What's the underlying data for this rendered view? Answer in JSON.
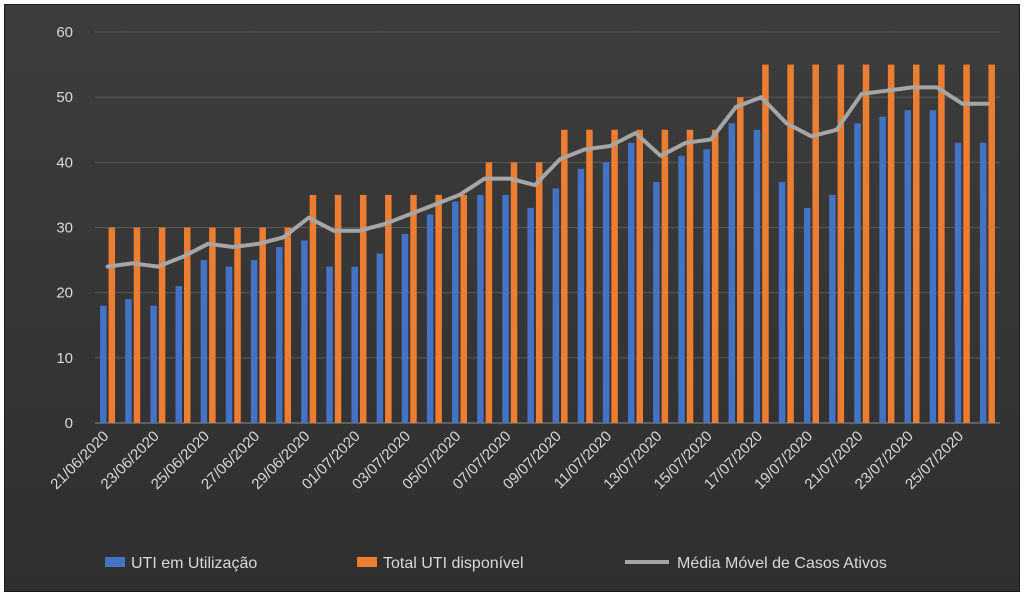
{
  "chart_data": {
    "type": "bar",
    "categories": [
      "21/06/2020",
      "22/06/2020",
      "23/06/2020",
      "24/06/2020",
      "25/06/2020",
      "26/06/2020",
      "27/06/2020",
      "28/06/2020",
      "29/06/2020",
      "30/06/2020",
      "01/07/2020",
      "02/07/2020",
      "03/07/2020",
      "04/07/2020",
      "05/07/2020",
      "06/07/2020",
      "07/07/2020",
      "08/07/2020",
      "09/07/2020",
      "10/07/2020",
      "11/07/2020",
      "12/07/2020",
      "13/07/2020",
      "14/07/2020",
      "15/07/2020",
      "16/07/2020",
      "17/07/2020",
      "18/07/2020",
      "19/07/2020",
      "20/07/2020",
      "21/07/2020",
      "22/07/2020",
      "23/07/2020",
      "24/07/2020",
      "25/07/2020",
      "26/07/2020"
    ],
    "x_tick_labels": [
      "21/06/2020",
      "23/06/2020",
      "25/06/2020",
      "27/06/2020",
      "29/06/2020",
      "01/07/2020",
      "03/07/2020",
      "05/07/2020",
      "07/07/2020",
      "09/07/2020",
      "11/07/2020",
      "13/07/2020",
      "15/07/2020",
      "17/07/2020",
      "19/07/2020",
      "21/07/2020",
      "23/07/2020",
      "25/07/2020"
    ],
    "series": [
      {
        "name": "UTI em Utilização",
        "kind": "bar",
        "color": "#4472c4",
        "values": [
          18,
          19,
          18,
          21,
          25,
          24,
          25,
          27,
          28,
          24,
          24,
          26,
          29,
          32,
          34,
          35,
          35,
          33,
          36,
          39,
          40,
          43,
          37,
          41,
          42,
          46,
          45,
          37,
          33,
          35,
          46,
          47,
          48,
          48,
          43,
          43
        ]
      },
      {
        "name": "Total UTI disponível",
        "kind": "bar",
        "color": "#ed7d31",
        "values": [
          30,
          30,
          30,
          30,
          30,
          30,
          30,
          30,
          35,
          35,
          35,
          35,
          35,
          35,
          35,
          40,
          40,
          40,
          45,
          45,
          45,
          45,
          45,
          45,
          45,
          50,
          55,
          55,
          55,
          55,
          55,
          55,
          55,
          55,
          55,
          55
        ]
      },
      {
        "name": "Média Móvel de Casos Ativos",
        "kind": "line",
        "color": "#a6a6a6",
        "values": [
          24,
          24.5,
          24,
          25.5,
          27.5,
          27,
          27.5,
          28.5,
          31.5,
          29.5,
          29.5,
          30.5,
          32,
          33.5,
          35,
          37.5,
          37.5,
          36.5,
          40.5,
          42,
          42.5,
          44.5,
          41,
          43,
          43.5,
          48.5,
          50,
          46,
          44,
          45,
          50.5,
          51,
          51.5,
          51.5,
          49,
          49
        ]
      }
    ],
    "ylim": [
      0,
      60
    ],
    "yticks": [
      0,
      10,
      20,
      30,
      40,
      50,
      60
    ],
    "grid": true,
    "legend": "bottom",
    "title": "",
    "xlabel": "",
    "ylabel": ""
  }
}
